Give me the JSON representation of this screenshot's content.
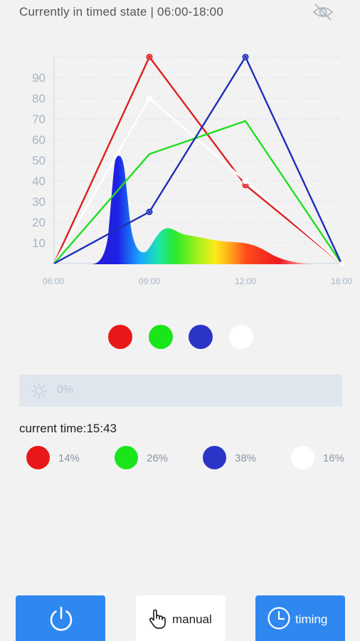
{
  "header": {
    "status_text": "Currently in timed state | 06:00-18:00",
    "visibility_icon": "eye-off-icon"
  },
  "chart_data": {
    "type": "line",
    "x": [
      "06:00",
      "09:00",
      "12:00",
      "18:00"
    ],
    "ylim": [
      0,
      100
    ],
    "yticks": [
      10,
      20,
      30,
      40,
      50,
      60,
      70,
      80,
      90
    ],
    "grid": true,
    "series": [
      {
        "color": "#e02020",
        "values": [
          0,
          100,
          38,
          0
        ]
      },
      {
        "color": "#ffffff",
        "values": [
          0,
          80,
          40,
          0
        ]
      },
      {
        "color": "#22dd22",
        "values": [
          0,
          53,
          69,
          0
        ]
      },
      {
        "color": "#1f2eb8",
        "values": [
          0,
          25,
          100,
          0
        ]
      }
    ]
  },
  "swatches": [
    {
      "color": "#e81818"
    },
    {
      "color": "#1ae51a"
    },
    {
      "color": "#2a35c8"
    },
    {
      "color": "#ffffff"
    }
  ],
  "brightness": {
    "icon": "sun-icon",
    "value": "0%"
  },
  "current_time": "current time:15:43",
  "channels": [
    {
      "color": "#e81818",
      "percent": "14%"
    },
    {
      "color": "#1ae51a",
      "percent": "26%"
    },
    {
      "color": "#2a35c8",
      "percent": "38%"
    },
    {
      "color": "#ffffff",
      "percent": "16%"
    }
  ],
  "buttons": {
    "power_icon": "power-icon",
    "manual_label": "manual",
    "manual_icon": "hand-pointer-icon",
    "timing_label": "timing",
    "timing_icon": "clock-icon"
  }
}
